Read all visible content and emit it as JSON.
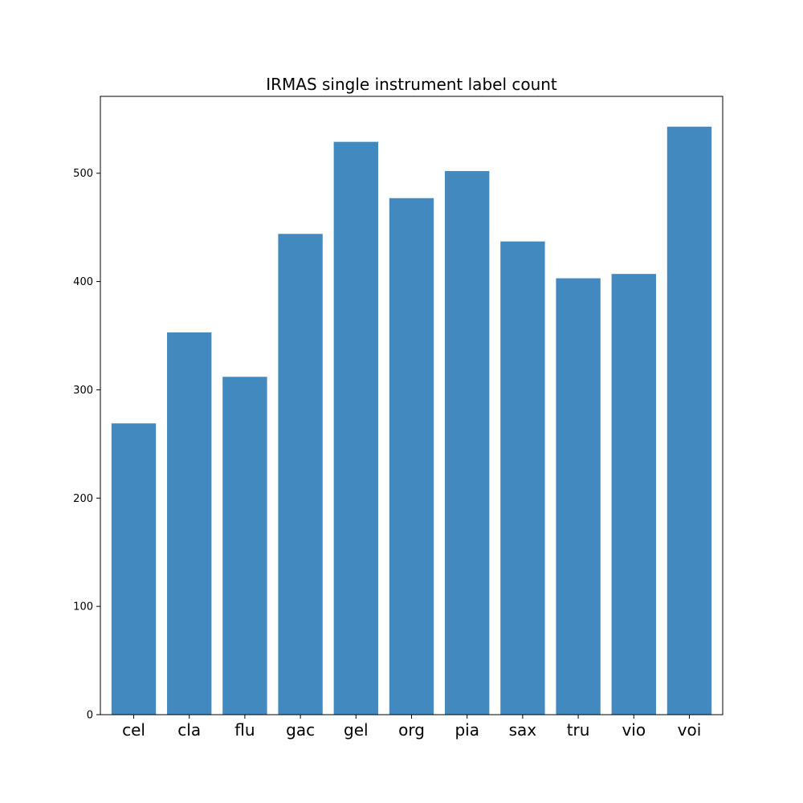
{
  "chart_data": {
    "type": "bar",
    "title": "IRMAS single instrument label count",
    "xlabel": "",
    "ylabel": "",
    "categories": [
      "cel",
      "cla",
      "flu",
      "gac",
      "gel",
      "org",
      "pia",
      "sax",
      "tru",
      "vio",
      "voi"
    ],
    "values": [
      269,
      353,
      312,
      444,
      529,
      477,
      502,
      437,
      403,
      407,
      543
    ],
    "ylim": [
      0,
      571
    ],
    "yticks": [
      0,
      100,
      200,
      300,
      400,
      500
    ],
    "ytick_labels": [
      "0",
      "100",
      "200",
      "300",
      "400",
      "500"
    ],
    "bar_color": "#4289bf",
    "grid": false,
    "legend": false
  }
}
